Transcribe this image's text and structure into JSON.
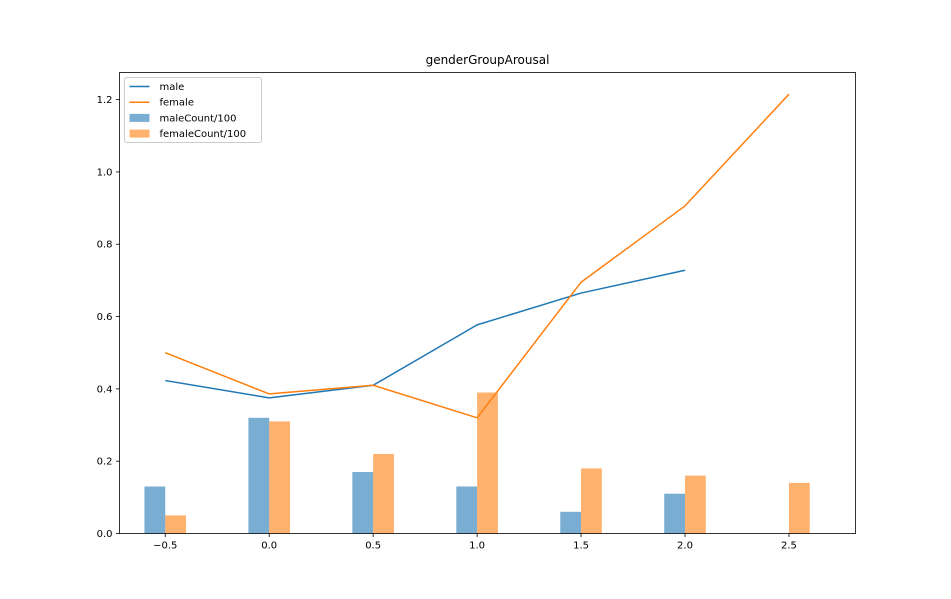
{
  "chart_data": {
    "type": "bar",
    "title": "genderGroupArousal",
    "xlabel": "",
    "ylabel": "",
    "xlim": [
      -0.72,
      2.82
    ],
    "ylim": [
      0,
      1.275
    ],
    "xticks": [
      -0.5,
      0.0,
      0.5,
      1.0,
      1.5,
      2.0,
      2.5
    ],
    "xtick_labels": [
      "−0.5",
      "0.0",
      "0.5",
      "1.0",
      "1.5",
      "2.0",
      "2.5"
    ],
    "yticks": [
      0.0,
      0.2,
      0.4,
      0.6,
      0.8,
      1.0,
      1.2
    ],
    "ytick_labels": [
      "0.0",
      "0.2",
      "0.4",
      "0.6",
      "0.8",
      "1.0",
      "1.2"
    ],
    "grid": false,
    "legend_position": "top-left",
    "lines": [
      {
        "name": "male",
        "color": "#1f77b4",
        "x": [
          -0.5,
          0.0,
          0.5,
          1.0,
          1.5,
          2.0
        ],
        "y": [
          0.423,
          0.375,
          0.41,
          0.577,
          0.665,
          0.728
        ]
      },
      {
        "name": "female",
        "color": "#ff7f0e",
        "x": [
          -0.5,
          0.0,
          0.5,
          1.0,
          1.5,
          2.0,
          2.5
        ],
        "y": [
          0.5,
          0.386,
          0.41,
          0.32,
          0.695,
          0.906,
          1.215
        ]
      }
    ],
    "bars": [
      {
        "name": "maleCount/100",
        "color": "#1f77b4",
        "alpha": 0.6,
        "offset": -0.05,
        "width": 0.1,
        "x": [
          -0.5,
          0.0,
          0.5,
          1.0,
          1.5,
          2.0
        ],
        "values": [
          0.13,
          0.32,
          0.17,
          0.13,
          0.06,
          0.11
        ]
      },
      {
        "name": "femaleCount/100",
        "color": "#ff7f0e",
        "alpha": 0.6,
        "offset": 0.05,
        "width": 0.1,
        "x": [
          -0.5,
          0.0,
          0.5,
          1.0,
          1.5,
          2.0,
          2.5
        ],
        "values": [
          0.05,
          0.31,
          0.22,
          0.39,
          0.18,
          0.16,
          0.14
        ]
      }
    ]
  }
}
